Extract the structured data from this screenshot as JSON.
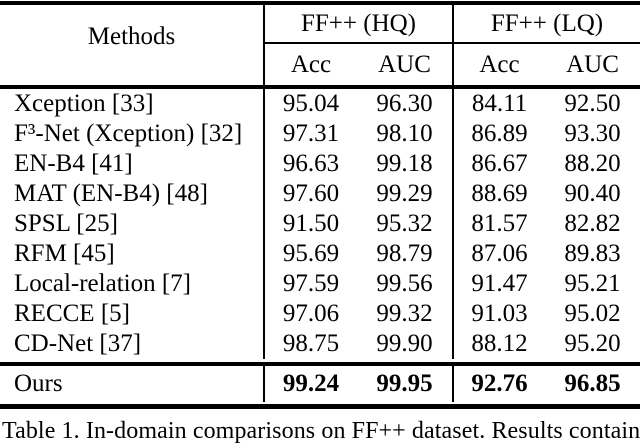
{
  "colors": {
    "background": "#ffffff",
    "text": "#000000",
    "rule": "#000000"
  },
  "table": {
    "header": {
      "methods_label": "Methods",
      "group_hq": "FF++ (HQ)",
      "group_lq": "FF++ (LQ)",
      "hq_acc": "Acc",
      "hq_auc": "AUC",
      "lq_acc": "Acc",
      "lq_auc": "AUC"
    },
    "rows": [
      {
        "method": "Xception [33]",
        "hq_acc": "95.04",
        "hq_auc": "96.30",
        "lq_acc": "84.11",
        "lq_auc": "92.50"
      },
      {
        "method": "F³-Net (Xception) [32]",
        "hq_acc": "97.31",
        "hq_auc": "98.10",
        "lq_acc": "86.89",
        "lq_auc": "93.30"
      },
      {
        "method": "EN-B4 [41]",
        "hq_acc": "96.63",
        "hq_auc": "99.18",
        "lq_acc": "86.67",
        "lq_auc": "88.20"
      },
      {
        "method": "MAT (EN-B4) [48]",
        "hq_acc": "97.60",
        "hq_auc": "99.29",
        "lq_acc": "88.69",
        "lq_auc": "90.40"
      },
      {
        "method": "SPSL [25]",
        "hq_acc": "91.50",
        "hq_auc": "95.32",
        "lq_acc": "81.57",
        "lq_auc": "82.82"
      },
      {
        "method": "RFM [45]",
        "hq_acc": "95.69",
        "hq_auc": "98.79",
        "lq_acc": "87.06",
        "lq_auc": "89.83"
      },
      {
        "method": "Local-relation [7]",
        "hq_acc": "97.59",
        "hq_auc": "99.56",
        "lq_acc": "91.47",
        "lq_auc": "95.21"
      },
      {
        "method": "RECCE [5]",
        "hq_acc": "97.06",
        "hq_auc": "99.32",
        "lq_acc": "91.03",
        "lq_auc": "95.02"
      },
      {
        "method": "CD-Net [37]",
        "hq_acc": "98.75",
        "hq_auc": "99.90",
        "lq_acc": "88.12",
        "lq_auc": "95.20"
      }
    ],
    "ours": {
      "method": "Ours",
      "hq_acc": "99.24",
      "hq_auc": "99.95",
      "lq_acc": "92.76",
      "lq_auc": "96.85"
    }
  },
  "caption": "Table 1.  In-domain comparisons on FF++ dataset. Results contain"
}
